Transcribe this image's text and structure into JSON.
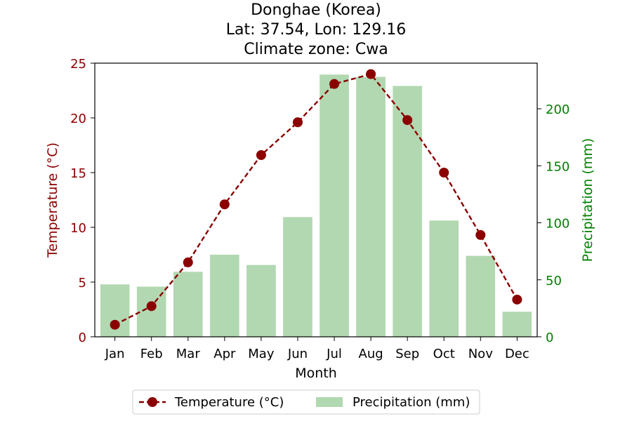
{
  "chart_data": {
    "type": "bar+line",
    "title_lines": [
      "Donghae (Korea)",
      "Lat: 37.54, Lon: 129.16",
      "Climate zone: Cwa"
    ],
    "xlabel": "Month",
    "categories": [
      "Jan",
      "Feb",
      "Mar",
      "Apr",
      "May",
      "Jun",
      "Jul",
      "Aug",
      "Sep",
      "Oct",
      "Nov",
      "Dec"
    ],
    "temperature": {
      "axis_label": "Temperature (°C)",
      "ylim": [
        0,
        25
      ],
      "ticks": [
        0,
        5,
        10,
        15,
        20,
        25
      ],
      "values": [
        1.1,
        2.8,
        6.8,
        12.1,
        16.6,
        19.6,
        23.1,
        24.0,
        19.8,
        15.0,
        9.3,
        3.4
      ],
      "color": "#8b0000",
      "style": "dashed line with circle markers"
    },
    "precipitation": {
      "axis_label": "Precipitation (mm)",
      "ylim": [
        0,
        240
      ],
      "ticks": [
        0,
        50,
        100,
        150,
        200
      ],
      "values": [
        46,
        44,
        57,
        72,
        63,
        105,
        230,
        228,
        220,
        102,
        71,
        22
      ],
      "color": "#b2d8b2",
      "axis_color": "#008000"
    },
    "legend": {
      "placement": "bottom-center",
      "entries": [
        "Temperature (°C)",
        "Precipitation (mm)"
      ]
    },
    "grid": false
  }
}
